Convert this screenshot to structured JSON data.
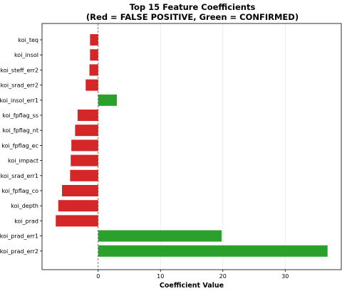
{
  "chart_data": {
    "type": "bar",
    "orientation": "horizontal",
    "title": "Top 15 Feature Coefficients",
    "subtitle": "(Red = FALSE POSITIVE, Green = CONFIRMED)",
    "xlabel": "Coefficient Value",
    "ylabel": "",
    "xlim": [
      -9,
      39
    ],
    "x_ticks": [
      0,
      10,
      20,
      30
    ],
    "x_tick_labels": [
      "0",
      "10",
      "20",
      "30"
    ],
    "grid": "vertical",
    "zero_line": "dashed",
    "categories": [
      "koi_teq",
      "koi_insol",
      "koi_steff_err2",
      "koi_srad_err2",
      "koi_insol_err1",
      "koi_fpflag_ss",
      "koi_fpflag_nt",
      "koi_fpflag_ec",
      "koi_impact",
      "koi_srad_err1",
      "koi_fpflag_co",
      "koi_depth",
      "koi_prad",
      "koi_prad_err1",
      "koi_prad_err2"
    ],
    "values": [
      -1.3,
      -1.3,
      -1.4,
      -2.0,
      3.0,
      -3.3,
      -3.7,
      -4.3,
      -4.4,
      -4.5,
      -5.8,
      -6.4,
      -6.8,
      19.8,
      36.8
    ],
    "colors": {
      "negative": "#d62728",
      "positive": "#2ca02c"
    }
  }
}
